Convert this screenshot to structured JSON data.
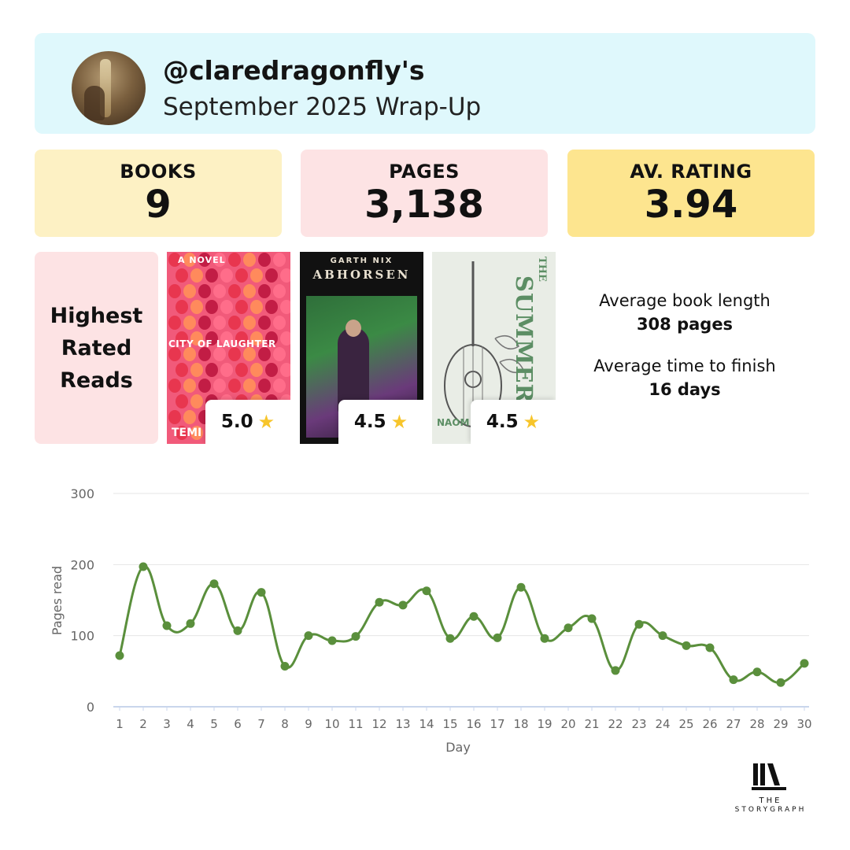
{
  "header": {
    "username": "@claredragonfly's",
    "subtitle": "September 2025 Wrap-Up"
  },
  "stats": [
    {
      "label": "BOOKS",
      "value": "9"
    },
    {
      "label": "PAGES",
      "value": "3,138"
    },
    {
      "label": "AV. RATING",
      "value": "3.94"
    }
  ],
  "highest_rated": {
    "title_lines": [
      "Highest",
      "Rated",
      "Reads"
    ],
    "books": [
      {
        "cover_top": "A NOVEL",
        "cover_title": "CITY OF LAUGHTER",
        "cover_bottom": "TEMI",
        "rating": "5.0"
      },
      {
        "cover_top": "GARTH NIX",
        "cover_title": "ABHORSEN",
        "cover_bottom": "",
        "rating": "4.5"
      },
      {
        "cover_top": "THE",
        "cover_title": "SUMMER WAR",
        "cover_bottom": "NAOM",
        "rating": "4.5"
      }
    ]
  },
  "averages": {
    "length_label": "Average book length",
    "length_value": "308 pages",
    "time_label": "Average time to finish",
    "time_value": "16 days"
  },
  "chart_data": {
    "type": "line",
    "xlabel": "Day",
    "ylabel": "Pages read",
    "ylim": [
      0,
      300
    ],
    "yticks": [
      0,
      100,
      200,
      300
    ],
    "x": [
      1,
      2,
      3,
      4,
      5,
      6,
      7,
      8,
      9,
      10,
      11,
      12,
      13,
      14,
      15,
      16,
      17,
      18,
      19,
      20,
      21,
      22,
      23,
      24,
      25,
      26,
      27,
      28,
      29,
      30
    ],
    "series": [
      {
        "values": [
          72,
          197,
          114,
          117,
          173,
          107,
          161,
          57,
          100,
          93,
          99,
          147,
          143,
          163,
          96,
          127,
          97,
          168,
          96,
          111,
          124,
          51,
          116,
          100,
          86,
          83,
          38,
          49,
          34,
          61
        ]
      }
    ],
    "grid": true,
    "color": "#5a8f3c"
  },
  "logo": {
    "line1": "THE",
    "line2": "STORYGRAPH"
  }
}
